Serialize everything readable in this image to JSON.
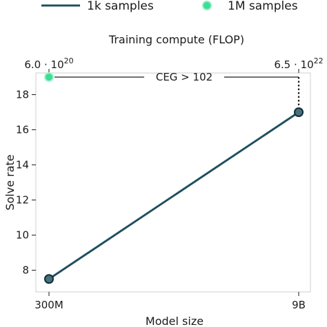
{
  "chart_data": {
    "type": "line",
    "xlabel": "Model size",
    "ylabel": "Solve rate",
    "top_xlabel": "Training compute (FLOP)",
    "x_categories": [
      "300M",
      "9B"
    ],
    "top_x_ticks": [
      {
        "base": "6.0 · 10",
        "exp": "20"
      },
      {
        "base": "6.5 · 10",
        "exp": "22"
      }
    ],
    "yticks": [
      8,
      10,
      12,
      14,
      16,
      18
    ],
    "ylim": [
      7.0,
      19.0
    ],
    "grid": false,
    "legend_position": "top",
    "series": [
      {
        "name": "1k samples",
        "values": [
          7.5,
          17.0
        ],
        "color": "#1f4f5f"
      },
      {
        "name": "1M samples",
        "values": [
          19.0
        ],
        "color": "#3ddc97"
      }
    ],
    "annotation": {
      "text": "CEG > 102",
      "value": 19.0
    }
  }
}
